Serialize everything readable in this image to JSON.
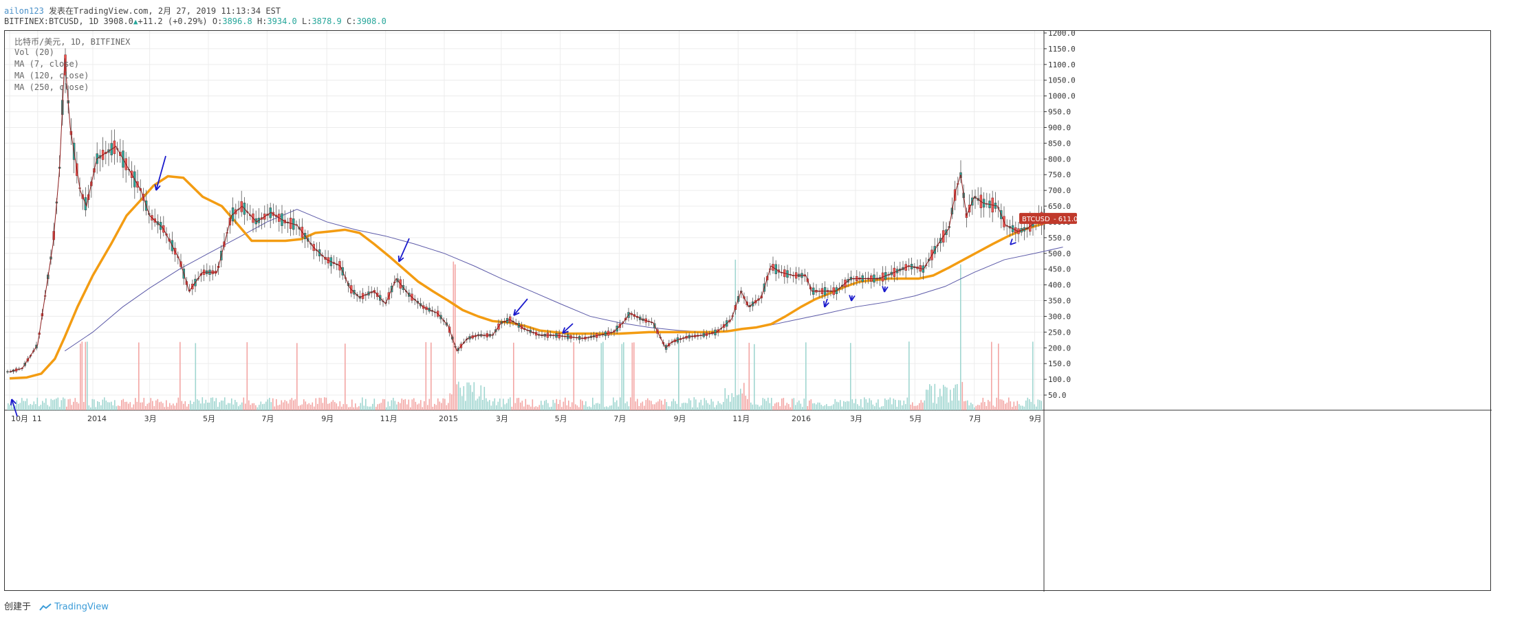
{
  "header": {
    "username": "ailon123",
    "published": "发表在TradingView.com, 2月 27, 2019 11:13:34 EST",
    "symbol": "BITFINEX:BTCUSD, 1D",
    "last": "3908.0",
    "change": "+11.2 (+0.29%)",
    "open_label": "O:",
    "open": "3896.8",
    "high_label": "H:",
    "high": "3934.0",
    "low_label": "L:",
    "low": "3878.9",
    "close_label": "C:",
    "close": "3908.0"
  },
  "legend": {
    "title": "比特币/美元, 1D, BITFINEX",
    "vol": "Vol (20)",
    "ma7": "MA (7, close)",
    "ma120": "MA (120, close)",
    "ma250": "MA (250, close)"
  },
  "price_tag": {
    "label": "BTCUSD",
    "value": "611.0"
  },
  "footer": {
    "created_by": "创建于",
    "brand": "TradingView"
  },
  "colors": {
    "up": "#26a69a",
    "down": "#ef5350",
    "candle_outline": "#5a1a1a",
    "ma7": "#8b1a1a",
    "ma120": "#f39c12",
    "ma250": "#5c5aa8",
    "arrow": "#1a1acc",
    "grid": "#ececec",
    "vol_up": "#9fd6d0",
    "vol_down": "#f3a5a3"
  },
  "chart_data": {
    "type": "line",
    "title": "比特币/美元, 1D, BITFINEX",
    "xlabel": "",
    "ylabel": "",
    "x_ticks": [
      "10月",
      "11",
      "2014",
      "3月",
      "5月",
      "7月",
      "9月",
      "11月",
      "2015",
      "3月",
      "5月",
      "7月",
      "9月",
      "11月",
      "2016",
      "3月",
      "5月",
      "7月",
      "9月"
    ],
    "y_ticks": [
      50,
      100,
      150,
      200,
      250,
      300,
      350,
      400,
      450,
      500,
      550,
      600,
      650,
      700,
      750,
      800,
      850,
      900,
      950,
      1000,
      1050,
      1100,
      1150,
      1200
    ],
    "ylim": [
      0,
      1220
    ],
    "grid": true,
    "series": [
      {
        "name": "BTCUSD",
        "kind": "candlestick",
        "x": [
          "2013-10-01",
          "2013-10-15",
          "2013-11-01",
          "2013-11-10",
          "2013-11-18",
          "2013-11-25",
          "2013-12-01",
          "2013-12-07",
          "2013-12-18",
          "2013-12-25",
          "2014-01-05",
          "2014-01-25",
          "2014-02-05",
          "2014-02-20",
          "2014-03-01",
          "2014-03-15",
          "2014-04-01",
          "2014-04-11",
          "2014-04-25",
          "2014-05-10",
          "2014-05-25",
          "2014-06-05",
          "2014-06-20",
          "2014-07-05",
          "2014-07-20",
          "2014-08-01",
          "2014-08-18",
          "2014-09-01",
          "2014-09-15",
          "2014-09-25",
          "2014-10-05",
          "2014-10-20",
          "2014-11-01",
          "2014-11-12",
          "2014-11-25",
          "2014-12-10",
          "2014-12-25",
          "2015-01-05",
          "2015-01-14",
          "2015-01-25",
          "2015-02-05",
          "2015-02-20",
          "2015-03-01",
          "2015-03-10",
          "2015-03-25",
          "2015-04-10",
          "2015-04-25",
          "2015-05-10",
          "2015-05-25",
          "2015-06-10",
          "2015-06-25",
          "2015-07-05",
          "2015-07-12",
          "2015-07-25",
          "2015-08-05",
          "2015-08-18",
          "2015-08-25",
          "2015-09-10",
          "2015-09-25",
          "2015-10-10",
          "2015-10-25",
          "2015-11-04",
          "2015-11-12",
          "2015-11-25",
          "2015-12-05",
          "2015-12-15",
          "2015-12-28",
          "2016-01-10",
          "2016-01-16",
          "2016-01-28",
          "2016-02-10",
          "2016-02-25",
          "2016-03-10",
          "2016-03-25",
          "2016-04-10",
          "2016-04-25",
          "2016-05-10",
          "2016-05-25",
          "2016-06-05",
          "2016-06-12",
          "2016-06-17",
          "2016-06-23",
          "2016-07-01",
          "2016-07-10",
          "2016-07-25",
          "2016-08-02",
          "2016-08-15",
          "2016-08-25",
          "2016-09-05",
          "2016-09-15",
          "2016-09-26"
        ],
        "y": [
          124,
          135,
          210,
          380,
          530,
          760,
          1120,
          900,
          700,
          650,
          800,
          840,
          780,
          700,
          620,
          580,
          480,
          380,
          440,
          440,
          620,
          650,
          600,
          630,
          600,
          590,
          520,
          480,
          460,
          390,
          360,
          380,
          340,
          420,
          370,
          330,
          310,
          270,
          190,
          230,
          240,
          240,
          280,
          290,
          260,
          240,
          240,
          235,
          230,
          240,
          250,
          280,
          310,
          290,
          280,
          200,
          220,
          235,
          240,
          250,
          290,
          380,
          330,
          360,
          460,
          440,
          430,
          430,
          380,
          380,
          380,
          420,
          420,
          420,
          440,
          460,
          450,
          530,
          580,
          700,
          750,
          620,
          680,
          660,
          650,
          590,
          570,
          580,
          610,
          610,
          611
        ]
      },
      {
        "name": "MA (120, close)",
        "x": [
          "2013-10-01",
          "2013-10-20",
          "2013-11-05",
          "2013-11-20",
          "2013-12-01",
          "2013-12-15",
          "2014-01-01",
          "2014-01-20",
          "2014-02-05",
          "2014-02-20",
          "2014-03-05",
          "2014-03-20",
          "2014-04-05",
          "2014-04-25",
          "2014-05-15",
          "2014-06-01",
          "2014-06-15",
          "2014-07-01",
          "2014-07-20",
          "2014-08-05",
          "2014-08-20",
          "2014-09-05",
          "2014-09-20",
          "2014-10-05",
          "2014-10-20",
          "2014-11-05",
          "2014-11-20",
          "2014-12-05",
          "2014-12-20",
          "2015-01-05",
          "2015-01-20",
          "2015-02-05",
          "2015-02-20",
          "2015-03-10",
          "2015-03-25",
          "2015-04-10",
          "2015-04-25",
          "2015-05-10",
          "2015-06-01",
          "2015-07-01",
          "2015-08-01",
          "2015-09-01",
          "2015-10-01",
          "2015-10-20",
          "2015-11-05",
          "2015-11-20",
          "2015-12-05",
          "2015-12-20",
          "2016-01-05",
          "2016-01-20",
          "2016-02-05",
          "2016-02-20",
          "2016-03-05",
          "2016-03-20",
          "2016-04-05",
          "2016-04-20",
          "2016-05-05",
          "2016-05-20",
          "2016-06-05",
          "2016-06-20",
          "2016-07-05",
          "2016-07-20",
          "2016-08-05",
          "2016-08-20",
          "2016-09-05",
          "2016-09-20",
          "2016-09-30"
        ],
        "y": [
          103,
          106,
          118,
          165,
          235,
          330,
          430,
          530,
          620,
          670,
          715,
          745,
          740,
          680,
          650,
          590,
          540,
          540,
          540,
          545,
          565,
          570,
          575,
          565,
          530,
          490,
          450,
          410,
          380,
          350,
          320,
          300,
          285,
          280,
          270,
          255,
          250,
          245,
          245,
          245,
          250,
          250,
          250,
          252,
          260,
          265,
          275,
          300,
          330,
          355,
          375,
          395,
          410,
          415,
          420,
          420,
          420,
          430,
          455,
          480,
          505,
          530,
          555,
          575,
          590,
          605,
          610
        ]
      },
      {
        "name": "MA (250, close)",
        "x": [
          "2013-12-01",
          "2014-01-01",
          "2014-02-01",
          "2014-03-01",
          "2014-04-01",
          "2014-05-01",
          "2014-06-01",
          "2014-07-01",
          "2014-08-01",
          "2014-09-01",
          "2014-10-01",
          "2014-11-01",
          "2014-12-01",
          "2015-01-01",
          "2015-02-01",
          "2015-03-01",
          "2015-04-01",
          "2015-05-01",
          "2015-06-01",
          "2015-07-01",
          "2015-08-01",
          "2015-09-01",
          "2015-10-01",
          "2015-11-01",
          "2015-12-01",
          "2016-01-01",
          "2016-02-01",
          "2016-03-01",
          "2016-04-01",
          "2016-05-01",
          "2016-06-01",
          "2016-07-01",
          "2016-08-01",
          "2016-09-01",
          "2016-09-30"
        ],
        "y": [
          190,
          250,
          330,
          390,
          450,
          500,
          550,
          600,
          640,
          600,
          575,
          555,
          530,
          500,
          460,
          420,
          380,
          340,
          300,
          280,
          265,
          255,
          250,
          258,
          270,
          290,
          310,
          330,
          345,
          365,
          395,
          440,
          480,
          500,
          520
        ]
      }
    ],
    "annotations": "blue arrows marking touches of the MA (120) line"
  }
}
